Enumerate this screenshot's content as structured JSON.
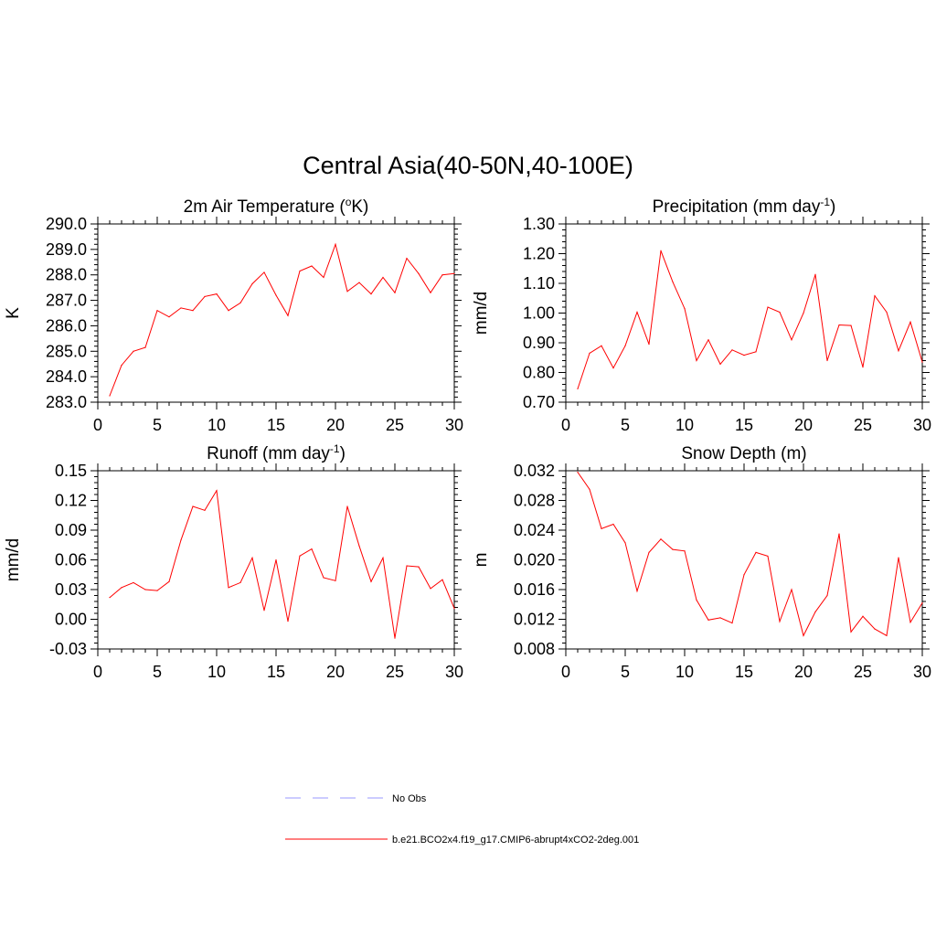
{
  "title": "Central Asia(40-50N,40-100E)",
  "colors": {
    "series": "#ff0000",
    "obs": "#9999ff",
    "axis": "#000000"
  },
  "legend": {
    "entries": [
      {
        "label": "No Obs",
        "style": "dashed",
        "color": "#9999ff"
      },
      {
        "label": "b.e21.BCO2x4.f19_g17.CMIP6-abrupt4xCO2-2deg.001",
        "style": "solid",
        "color": "#ff0000"
      }
    ]
  },
  "chart_data": [
    {
      "type": "line",
      "title": "2m Air Temperature (",
      "title_sup": "o",
      "title_after": "K)",
      "ylabel": "K",
      "xlabel": "",
      "xlim": [
        0,
        30
      ],
      "ylim": [
        283.0,
        290.0
      ],
      "xticks": [
        0,
        5,
        10,
        15,
        20,
        25,
        30
      ],
      "xtick_labels": [
        "0",
        "5",
        "10",
        "15",
        "20",
        "25",
        "30"
      ],
      "yticks": [
        283.0,
        284.0,
        285.0,
        286.0,
        287.0,
        288.0,
        289.0,
        290.0
      ],
      "ytick_labels": [
        "283.0",
        "284.0",
        "285.0",
        "286.0",
        "287.0",
        "288.0",
        "289.0",
        "290.0"
      ],
      "yminor_step": 0.2,
      "series": [
        {
          "name": "b.e21.BCO2x4.f19_g17.CMIP6-abrupt4xCO2-2deg.001",
          "x": [
            1,
            2,
            3,
            4,
            5,
            6,
            7,
            8,
            9,
            10,
            11,
            12,
            13,
            14,
            15,
            16,
            17,
            18,
            19,
            20,
            21,
            22,
            23,
            24,
            25,
            26,
            27,
            28,
            29,
            30
          ],
          "values": [
            283.25,
            284.45,
            285.0,
            285.15,
            286.6,
            286.35,
            286.7,
            286.6,
            287.15,
            287.25,
            286.6,
            286.9,
            287.65,
            288.1,
            287.2,
            286.4,
            288.15,
            288.35,
            287.9,
            289.2,
            287.35,
            287.7,
            287.25,
            287.9,
            287.3,
            288.65,
            288.05,
            287.3,
            288.0,
            288.05
          ]
        }
      ]
    },
    {
      "type": "line",
      "title": "Precipitation (mm day",
      "title_sup": "-1",
      "title_after": ")",
      "ylabel": "mm/d",
      "xlabel": "",
      "xlim": [
        0,
        30
      ],
      "ylim": [
        0.7,
        1.3
      ],
      "xticks": [
        0,
        5,
        10,
        15,
        20,
        25,
        30
      ],
      "xtick_labels": [
        "0",
        "5",
        "10",
        "15",
        "20",
        "25",
        "30"
      ],
      "yticks": [
        0.7,
        0.8,
        0.9,
        1.0,
        1.1,
        1.2,
        1.3
      ],
      "ytick_labels": [
        "0.70",
        "0.80",
        "0.90",
        "1.00",
        "1.10",
        "1.20",
        "1.30"
      ],
      "yminor_step": 0.02,
      "series": [
        {
          "name": "b.e21.BCO2x4.f19_g17.CMIP6-abrupt4xCO2-2deg.001",
          "x": [
            1,
            2,
            3,
            4,
            5,
            6,
            7,
            8,
            9,
            10,
            11,
            12,
            13,
            14,
            15,
            16,
            17,
            18,
            19,
            20,
            21,
            22,
            23,
            24,
            25,
            26,
            27,
            28,
            29,
            30
          ],
          "values": [
            0.745,
            0.865,
            0.89,
            0.815,
            0.89,
            1.003,
            0.895,
            1.21,
            1.105,
            1.015,
            0.84,
            0.91,
            0.828,
            0.876,
            0.858,
            0.87,
            1.02,
            1.003,
            0.91,
            1.0,
            1.13,
            0.84,
            0.96,
            0.958,
            0.818,
            1.058,
            1.003,
            0.873,
            0.97,
            0.835
          ]
        }
      ]
    },
    {
      "type": "line",
      "title": "Runoff (mm day",
      "title_sup": "-1",
      "title_after": ")",
      "ylabel": "mm/d",
      "xlabel": "",
      "xlim": [
        0,
        30
      ],
      "ylim": [
        -0.03,
        0.15
      ],
      "xticks": [
        0,
        5,
        10,
        15,
        20,
        25,
        30
      ],
      "xtick_labels": [
        "0",
        "5",
        "10",
        "15",
        "20",
        "25",
        "30"
      ],
      "yticks": [
        -0.03,
        0.0,
        0.03,
        0.06,
        0.09,
        0.12,
        0.15
      ],
      "ytick_labels": [
        "-0.03",
        "0.00",
        "0.03",
        "0.06",
        "0.09",
        "0.12",
        "0.15"
      ],
      "yminor_step": 0.006,
      "series": [
        {
          "name": "b.e21.BCO2x4.f19_g17.CMIP6-abrupt4xCO2-2deg.001",
          "x": [
            1,
            2,
            3,
            4,
            5,
            6,
            7,
            8,
            9,
            10,
            11,
            12,
            13,
            14,
            15,
            16,
            17,
            18,
            19,
            20,
            21,
            22,
            23,
            24,
            25,
            26,
            27,
            28,
            29,
            30
          ],
          "values": [
            0.022,
            0.032,
            0.037,
            0.03,
            0.029,
            0.038,
            0.08,
            0.114,
            0.11,
            0.13,
            0.032,
            0.037,
            0.062,
            0.009,
            0.06,
            -0.002,
            0.064,
            0.071,
            0.042,
            0.039,
            0.114,
            0.074,
            0.038,
            0.062,
            -0.019,
            0.054,
            0.053,
            0.031,
            0.04,
            0.011
          ]
        }
      ]
    },
    {
      "type": "line",
      "title": "Snow Depth (m)",
      "title_sup": "",
      "title_after": "",
      "ylabel": "m",
      "xlabel": "",
      "xlim": [
        0,
        30
      ],
      "ylim": [
        0.008,
        0.032
      ],
      "xticks": [
        0,
        5,
        10,
        15,
        20,
        25,
        30
      ],
      "xtick_labels": [
        "0",
        "5",
        "10",
        "15",
        "20",
        "25",
        "30"
      ],
      "yticks": [
        0.008,
        0.012,
        0.016,
        0.02,
        0.024,
        0.028,
        0.032
      ],
      "ytick_labels": [
        "0.008",
        "0.012",
        "0.016",
        "0.020",
        "0.024",
        "0.028",
        "0.032"
      ],
      "yminor_step": 0.0008,
      "series": [
        {
          "name": "b.e21.BCO2x4.f19_g17.CMIP6-abrupt4xCO2-2deg.001",
          "x": [
            1,
            2,
            3,
            4,
            5,
            6,
            7,
            8,
            9,
            10,
            11,
            12,
            13,
            14,
            15,
            16,
            17,
            18,
            19,
            20,
            21,
            22,
            23,
            24,
            25,
            26,
            27,
            28,
            29,
            30
          ],
          "values": [
            0.0318,
            0.0295,
            0.0242,
            0.0248,
            0.0223,
            0.0158,
            0.021,
            0.0228,
            0.0214,
            0.0212,
            0.0146,
            0.0119,
            0.0122,
            0.0115,
            0.018,
            0.021,
            0.0205,
            0.0117,
            0.016,
            0.0098,
            0.013,
            0.0152,
            0.0235,
            0.0103,
            0.0124,
            0.0107,
            0.0098,
            0.0203,
            0.0116,
            0.0142
          ]
        }
      ]
    }
  ]
}
